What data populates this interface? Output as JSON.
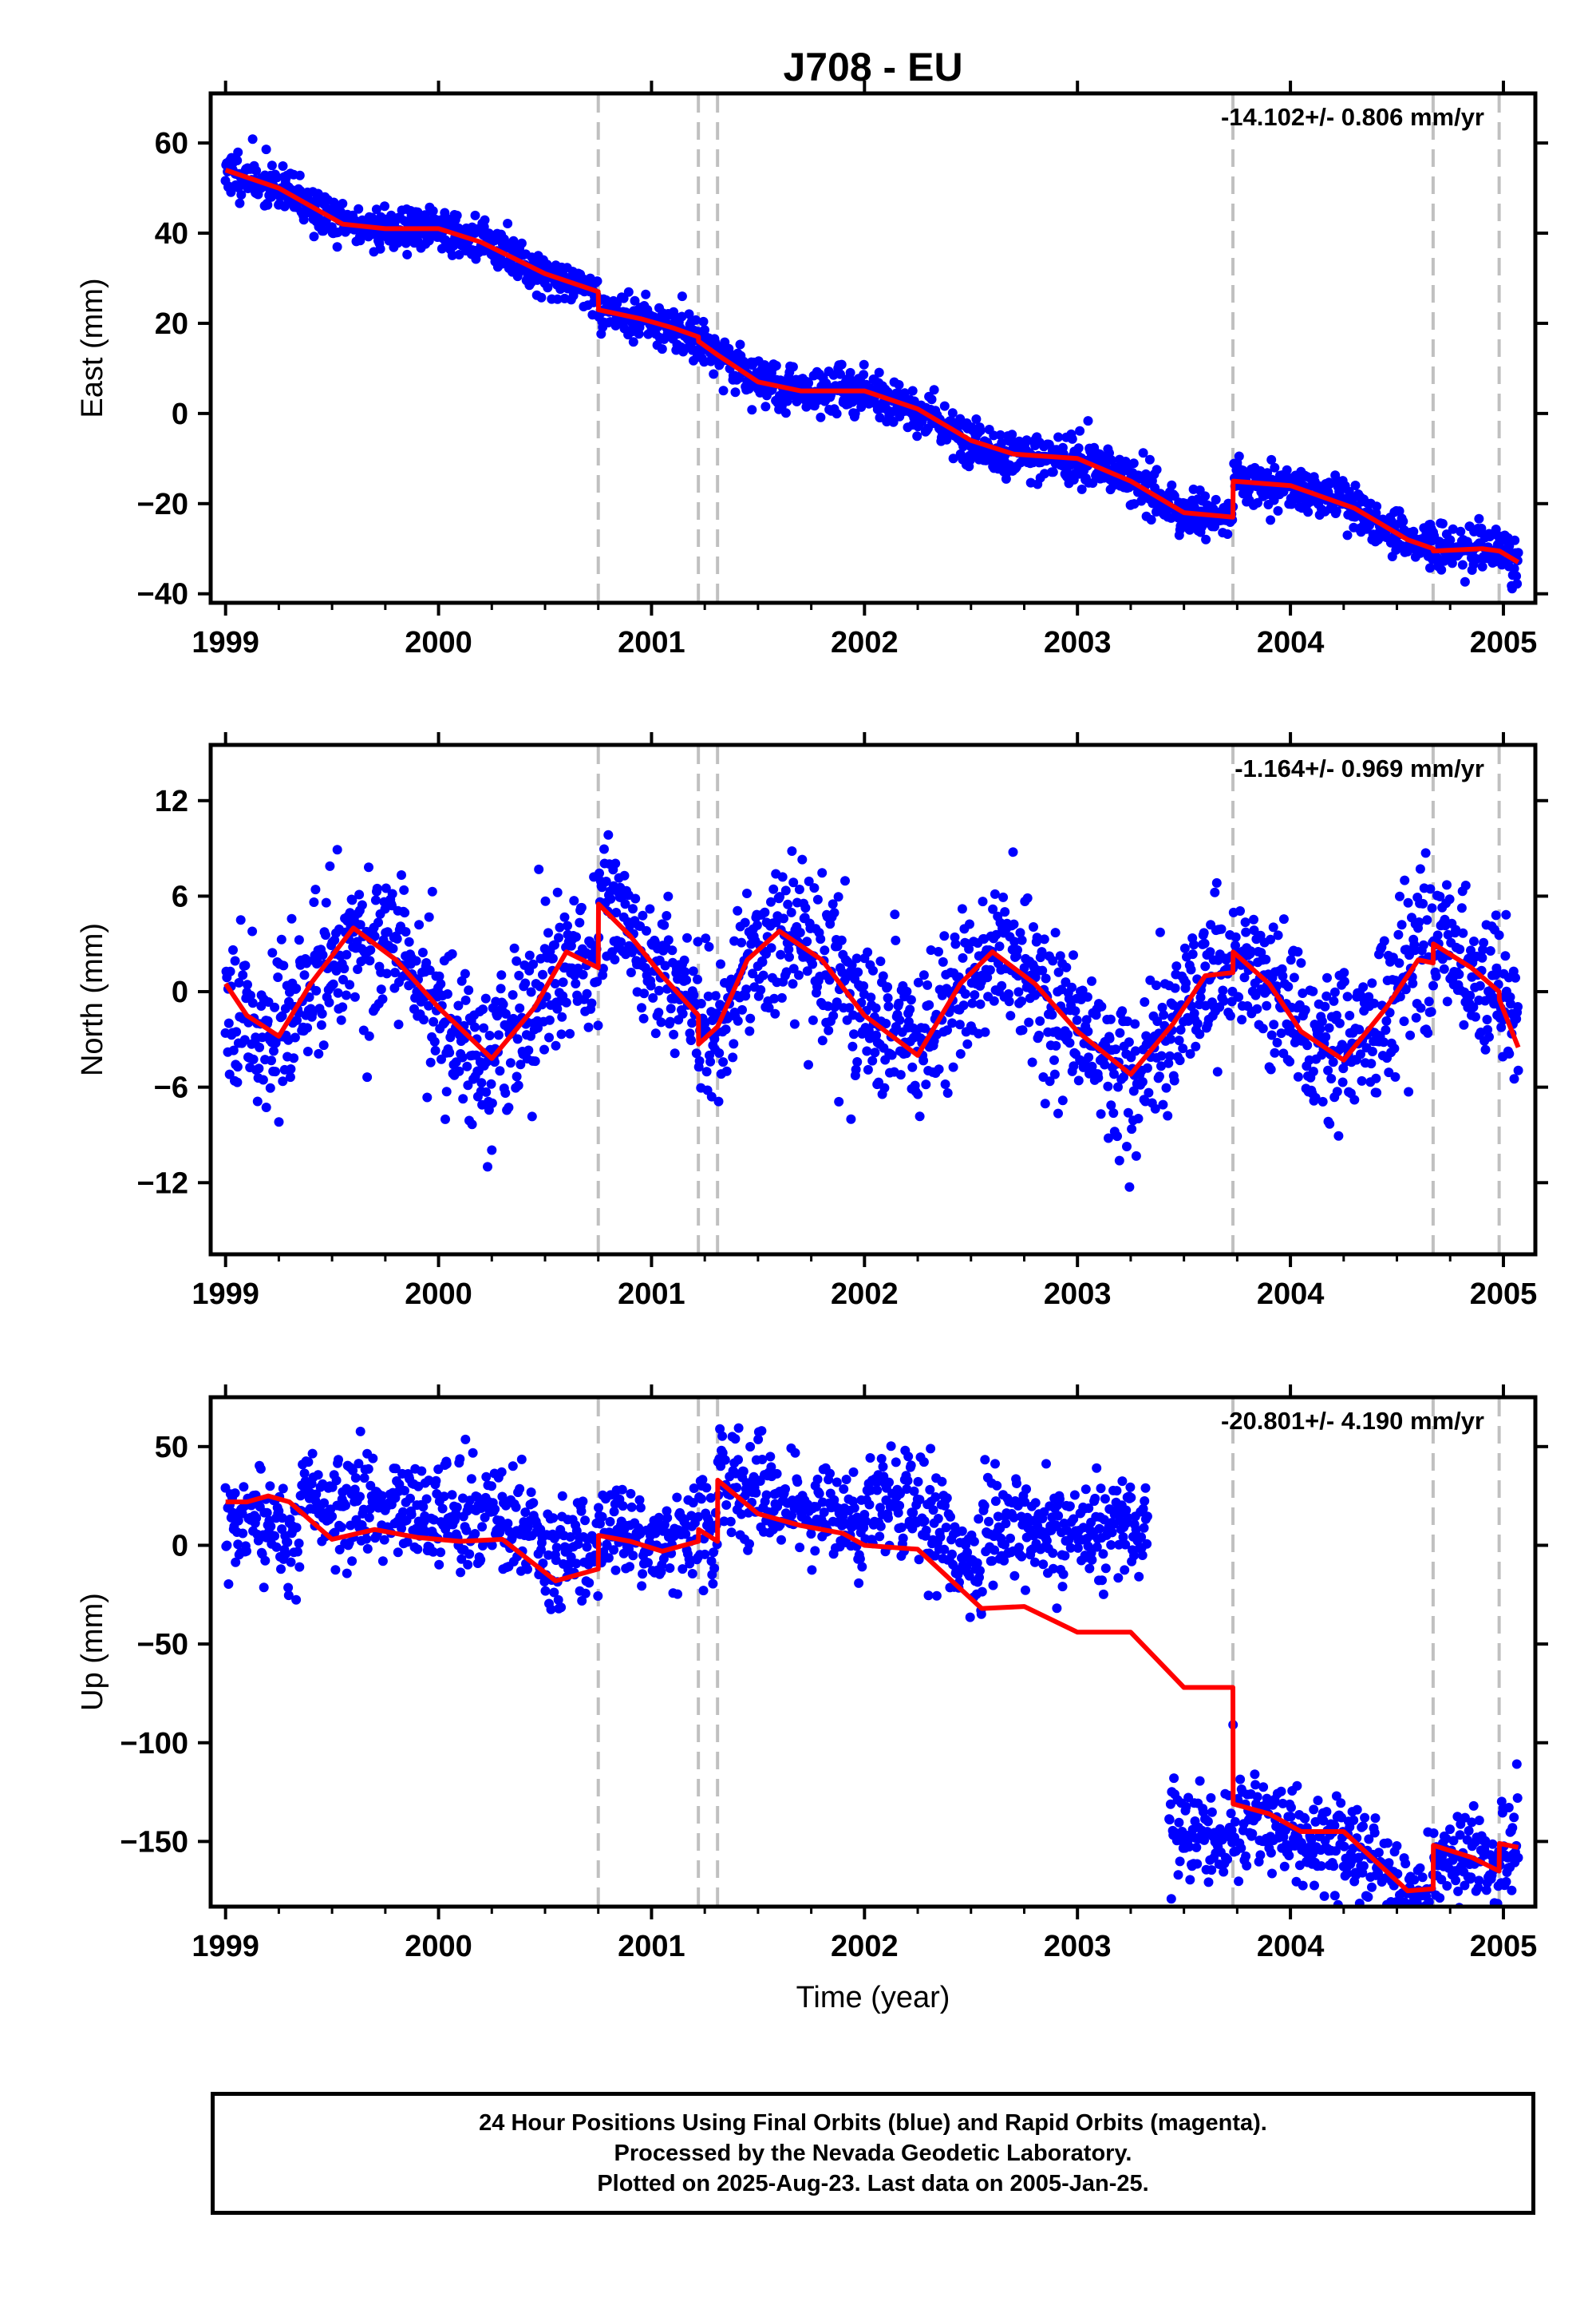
{
  "colors": {
    "final_orbits": "#0000ff",
    "model": "#ff0000",
    "break_lines": "#c0c0c0",
    "frame": "#000000"
  },
  "footer": {
    "line1": "24 Hour Positions Using Final Orbits (blue) and Rapid Orbits (magenta).",
    "line2": "Processed by the Nevada Geodetic Laboratory.",
    "line3": "Plotted on 2025-Aug-23. Last data on 2005-Jan-25."
  },
  "chart_data": [
    {
      "type": "scatter",
      "title": "J708 - EU",
      "ylabel": "East (mm)",
      "xlabel": "",
      "rate": "-14.102+/- 0.806 mm/yr",
      "xlim": [
        1998.93,
        2005.15
      ],
      "ylim": [
        -42,
        71
      ],
      "x_ticks": [
        1999,
        2000,
        2001,
        2002,
        2003,
        2004,
        2005
      ],
      "y_ticks": [
        {
          "v": 60,
          "label": "60"
        },
        {
          "v": 40,
          "label": "40"
        },
        {
          "v": 20,
          "label": "20"
        },
        {
          "v": 0,
          "label": "0"
        },
        {
          "v": -20,
          "label": "−20"
        },
        {
          "v": -40,
          "label": "−40"
        }
      ],
      "breaks": [
        2000.75,
        2001.22,
        2001.31,
        2003.73,
        2004.67,
        2004.98
      ],
      "data_span": [
        1999.0,
        2005.07
      ],
      "model": [
        [
          1999.0,
          54
        ],
        [
          1999.25,
          50
        ],
        [
          1999.55,
          42
        ],
        [
          1999.75,
          41
        ],
        [
          2000.0,
          41
        ],
        [
          2000.2,
          38
        ],
        [
          2000.5,
          31
        ],
        [
          2000.75,
          27
        ],
        [
          2000.751,
          23
        ],
        [
          2000.95,
          21
        ],
        [
          2001.1,
          19
        ],
        [
          2001.22,
          17
        ],
        [
          2001.221,
          16
        ],
        [
          2001.31,
          13
        ],
        [
          2001.5,
          7
        ],
        [
          2001.7,
          5
        ],
        [
          2002.0,
          5
        ],
        [
          2002.25,
          1
        ],
        [
          2002.5,
          -6
        ],
        [
          2002.7,
          -9
        ],
        [
          2003.0,
          -10
        ],
        [
          2003.25,
          -15
        ],
        [
          2003.5,
          -22
        ],
        [
          2003.73,
          -23
        ],
        [
          2003.731,
          -15
        ],
        [
          2004.0,
          -16
        ],
        [
          2004.3,
          -21
        ],
        [
          2004.55,
          -28
        ],
        [
          2004.67,
          -30
        ],
        [
          2004.671,
          -30.5
        ],
        [
          2004.9,
          -30
        ],
        [
          2004.98,
          -30.5
        ],
        [
          2004.981,
          -30.5
        ],
        [
          2005.07,
          -33
        ]
      ],
      "scatter_sd": 2.5,
      "scatter_gaps": [],
      "scatter_shifts": [],
      "points_count": 1900,
      "seed": 11
    },
    {
      "type": "scatter",
      "title": "",
      "ylabel": "North (mm)",
      "xlabel": "",
      "rate": "-1.164+/- 0.969 mm/yr",
      "xlim": [
        1998.93,
        2005.15
      ],
      "ylim": [
        -16.5,
        15.5
      ],
      "x_ticks": [
        1999,
        2000,
        2001,
        2002,
        2003,
        2004,
        2005
      ],
      "y_ticks": [
        {
          "v": 12,
          "label": "12"
        },
        {
          "v": 6,
          "label": "6"
        },
        {
          "v": 0,
          "label": "0"
        },
        {
          "v": -6,
          "label": "−6"
        },
        {
          "v": -12,
          "label": "−12"
        }
      ],
      "breaks": [
        2000.75,
        2001.22,
        2001.31,
        2003.73,
        2004.67,
        2004.98
      ],
      "data_span": [
        1999.0,
        2005.07
      ],
      "model": [
        [
          1999.0,
          0.5
        ],
        [
          1999.1,
          -1.5
        ],
        [
          1999.25,
          -2.8
        ],
        [
          1999.4,
          0.5
        ],
        [
          1999.6,
          4
        ],
        [
          1999.8,
          2
        ],
        [
          2000.0,
          -1
        ],
        [
          2000.25,
          -4.2
        ],
        [
          2000.45,
          -1
        ],
        [
          2000.6,
          2.5
        ],
        [
          2000.75,
          1.5
        ],
        [
          2000.751,
          5.5
        ],
        [
          2000.9,
          3.5
        ],
        [
          2001.05,
          1
        ],
        [
          2001.22,
          -1.5
        ],
        [
          2001.221,
          -3.3
        ],
        [
          2001.31,
          -2.2
        ],
        [
          2001.45,
          2
        ],
        [
          2001.6,
          3.8
        ],
        [
          2001.8,
          2
        ],
        [
          2002.0,
          -1.5
        ],
        [
          2002.25,
          -4
        ],
        [
          2002.45,
          0.5
        ],
        [
          2002.6,
          2.5
        ],
        [
          2002.8,
          0.5
        ],
        [
          2003.0,
          -2.5
        ],
        [
          2003.25,
          -5.2
        ],
        [
          2003.45,
          -2
        ],
        [
          2003.6,
          1
        ],
        [
          2003.73,
          1.2
        ],
        [
          2003.731,
          2.5
        ],
        [
          2003.9,
          0.5
        ],
        [
          2004.05,
          -2.5
        ],
        [
          2004.25,
          -4.3
        ],
        [
          2004.45,
          -1
        ],
        [
          2004.6,
          2
        ],
        [
          2004.67,
          1.8
        ],
        [
          2004.671,
          3
        ],
        [
          2004.85,
          1.5
        ],
        [
          2004.98,
          0
        ],
        [
          2004.981,
          -0.5
        ],
        [
          2005.07,
          -3.5
        ]
      ],
      "scatter_sd": 2.4,
      "scatter_gaps": [],
      "scatter_shifts": [],
      "points_count": 1900,
      "seed": 23
    },
    {
      "type": "scatter",
      "title": "",
      "ylabel": "Up (mm)",
      "xlabel": "Time (year)",
      "rate": "-20.801+/- 4.190 mm/yr",
      "xlim": [
        1998.93,
        2005.15
      ],
      "ylim": [
        -183,
        75
      ],
      "x_ticks": [
        1999,
        2000,
        2001,
        2002,
        2003,
        2004,
        2005
      ],
      "y_ticks": [
        {
          "v": 50,
          "label": "50"
        },
        {
          "v": 0,
          "label": "0"
        },
        {
          "v": -50,
          "label": "−50"
        },
        {
          "v": -100,
          "label": "−100"
        },
        {
          "v": -150,
          "label": "−150"
        }
      ],
      "breaks": [
        2000.75,
        2001.22,
        2001.31,
        2003.73,
        2004.67,
        2004.98
      ],
      "data_span": [
        1999.0,
        2005.07
      ],
      "model": [
        [
          1999.0,
          22
        ],
        [
          1999.1,
          22
        ],
        [
          1999.2,
          25
        ],
        [
          1999.3,
          22
        ],
        [
          1999.5,
          3
        ],
        [
          1999.7,
          8
        ],
        [
          1999.9,
          4
        ],
        [
          2000.1,
          2
        ],
        [
          2000.3,
          3
        ],
        [
          2000.55,
          -18
        ],
        [
          2000.75,
          -12
        ],
        [
          2000.751,
          5
        ],
        [
          2000.9,
          2
        ],
        [
          2001.05,
          -3
        ],
        [
          2001.22,
          2
        ],
        [
          2001.221,
          8
        ],
        [
          2001.31,
          2
        ],
        [
          2001.311,
          33
        ],
        [
          2001.5,
          16
        ],
        [
          2001.7,
          10
        ],
        [
          2001.9,
          6
        ],
        [
          2002.0,
          0
        ],
        [
          2002.25,
          -2
        ],
        [
          2002.55,
          -32
        ],
        [
          2002.75,
          -31
        ],
        [
          2003.0,
          -44
        ],
        [
          2003.25,
          -44
        ],
        [
          2003.5,
          -72
        ],
        [
          2003.73,
          -72
        ],
        [
          2003.731,
          -131
        ],
        [
          2003.9,
          -136
        ],
        [
          2004.05,
          -145
        ],
        [
          2004.25,
          -145
        ],
        [
          2004.45,
          -165
        ],
        [
          2004.55,
          -175
        ],
        [
          2004.67,
          -174
        ],
        [
          2004.671,
          -152
        ],
        [
          2004.85,
          -158
        ],
        [
          2004.98,
          -165
        ],
        [
          2004.981,
          -151
        ],
        [
          2005.07,
          -153
        ]
      ],
      "scatter_sd": 13,
      "scatter_gaps": [
        [
          2003.33,
          2003.43
        ]
      ],
      "scatter_shifts": [
        {
          "x0": 1999.0,
          "x1": 1999.35,
          "dy": -15
        },
        {
          "x0": 1999.35,
          "x1": 2000.75,
          "dy": 12
        },
        {
          "x0": 2000.75,
          "x1": 2001.31,
          "dy": 4
        },
        {
          "x0": 2001.31,
          "x1": 2002.0,
          "dy": 8
        },
        {
          "x0": 2002.0,
          "x1": 2002.55,
          "dy": 20
        },
        {
          "x0": 2002.55,
          "x1": 2002.95,
          "dy": 42
        },
        {
          "x0": 2002.95,
          "x1": 2003.33,
          "dy": 52
        },
        {
          "x0": 2003.43,
          "x1": 2003.73,
          "dy": -75
        },
        {
          "x0": 2003.73,
          "x1": 2004.67,
          "dy": -5
        },
        {
          "x0": 2004.67,
          "x1": 2005.07,
          "dy": -2
        }
      ],
      "points_count": 1800,
      "seed": 37
    }
  ]
}
